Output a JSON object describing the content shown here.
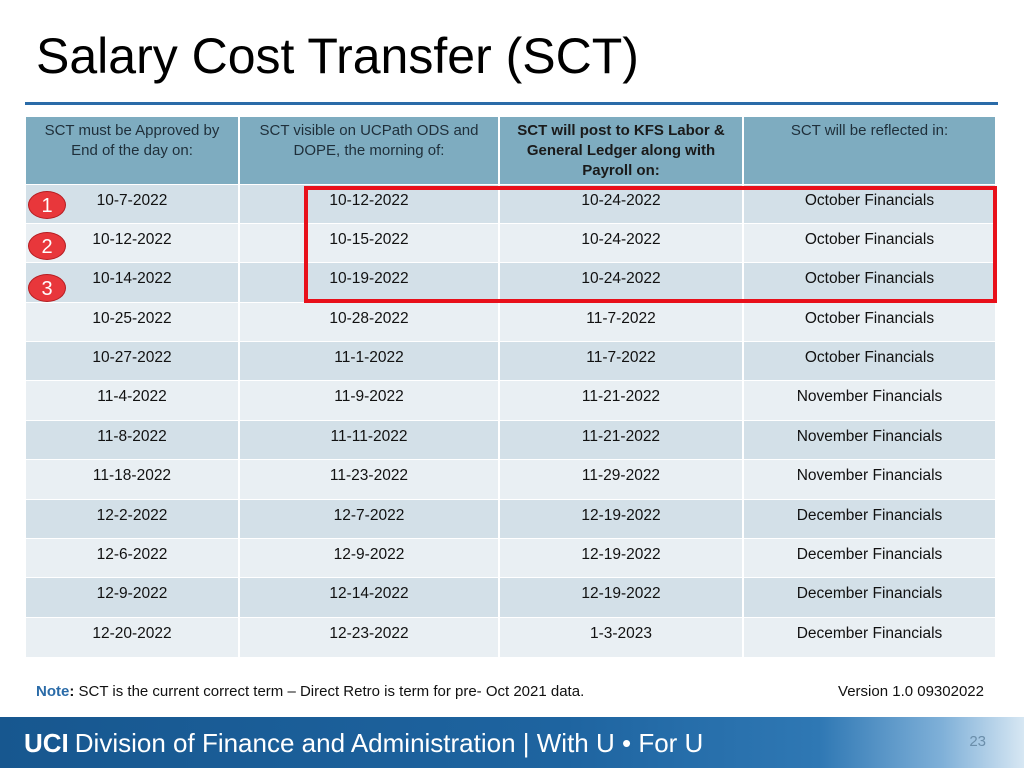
{
  "slide": {
    "title": "Salary Cost Transfer (SCT)",
    "page_number": "23"
  },
  "table": {
    "headers": [
      "SCT must be Approved by End of the day on:",
      "SCT visible on UCPath ODS and DOPE, the morning of:",
      "SCT will post to KFS Labor & General Ledger along with Payroll on:",
      "SCT will be reflected in:"
    ],
    "rows": [
      [
        "10-7-2022",
        "10-12-2022",
        "10-24-2022",
        "October Financials"
      ],
      [
        "10-12-2022",
        "10-15-2022",
        "10-24-2022",
        "October Financials"
      ],
      [
        "10-14-2022",
        "10-19-2022",
        "10-24-2022",
        "October Financials"
      ],
      [
        "10-25-2022",
        "10-28-2022",
        "11-7-2022",
        "October Financials"
      ],
      [
        "10-27-2022",
        "11-1-2022",
        "11-7-2022",
        "October Financials"
      ],
      [
        "11-4-2022",
        "11-9-2022",
        "11-21-2022",
        "November Financials"
      ],
      [
        "11-8-2022",
        "11-11-2022",
        "11-21-2022",
        "November Financials"
      ],
      [
        "11-18-2022",
        "11-23-2022",
        "11-29-2022",
        "November Financials"
      ],
      [
        "12-2-2022",
        "12-7-2022",
        "12-19-2022",
        "December Financials"
      ],
      [
        "12-6-2022",
        "12-9-2022",
        "12-19-2022",
        "December Financials"
      ],
      [
        "12-9-2022",
        "12-14-2022",
        "12-19-2022",
        "December Financials"
      ],
      [
        "12-20-2022",
        "12-23-2022",
        "1-3-2023",
        "December Financials"
      ]
    ]
  },
  "markers": [
    "1",
    "2",
    "3"
  ],
  "note": {
    "label": "Note",
    "colon": ":",
    "text": " SCT is the current correct term – Direct Retro is term for pre- Oct 2021 data."
  },
  "version": "Version 1.0 09302022",
  "footer": {
    "brand": "UCI",
    "text": "Division of Finance and Administration | With U • For U"
  },
  "colors": {
    "title_rule": "#2a6ba8",
    "header_bg": "#7eacc0",
    "row_odd": "#d3e0e8",
    "row_even": "#e9eff3",
    "highlight": "#e8101a",
    "marker": "#e8373b",
    "footer": "#1e64a0"
  }
}
